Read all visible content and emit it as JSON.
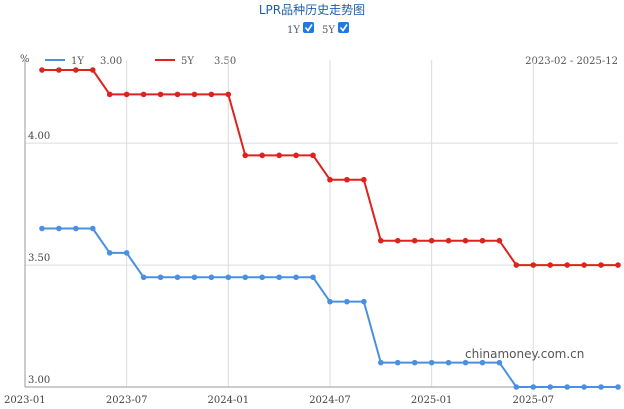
{
  "chart_data": {
    "type": "line",
    "title": "LPR品种历史走势图",
    "toggles": [
      {
        "label": "1Y",
        "checked": true
      },
      {
        "label": "5Y",
        "checked": true
      }
    ],
    "unit": "%",
    "date_range": "2023-02 - 2025-12",
    "watermark": "chinamoney.com.cn",
    "x": [
      "2023-02",
      "2023-03",
      "2023-04",
      "2023-05",
      "2023-06",
      "2023-07",
      "2023-08",
      "2023-09",
      "2023-10",
      "2023-11",
      "2023-12",
      "2024-01",
      "2024-02",
      "2024-03",
      "2024-04",
      "2024-05",
      "2024-06",
      "2024-07",
      "2024-08",
      "2024-09",
      "2024-10",
      "2024-11",
      "2024-12",
      "2025-01",
      "2025-02",
      "2025-03",
      "2025-04",
      "2025-05",
      "2025-06",
      "2025-07",
      "2025-08",
      "2025-09",
      "2025-10",
      "2025-11",
      "2025-12"
    ],
    "x_tick_labels": [
      "2023-01",
      "2023-07",
      "2024-01",
      "2024-07",
      "2025-01",
      "2025-07"
    ],
    "y_tick_labels": [
      "3.00",
      "3.50",
      "4.00"
    ],
    "ylim": [
      3.0,
      4.3
    ],
    "grid": true,
    "series": [
      {
        "name": "1Y",
        "latest": "3.00",
        "color": "#4a90e2",
        "values": [
          3.65,
          3.65,
          3.65,
          3.65,
          3.55,
          3.55,
          3.45,
          3.45,
          3.45,
          3.45,
          3.45,
          3.45,
          3.45,
          3.45,
          3.45,
          3.45,
          3.45,
          3.35,
          3.35,
          3.35,
          3.1,
          3.1,
          3.1,
          3.1,
          3.1,
          3.1,
          3.1,
          3.1,
          3.0,
          3.0,
          3.0,
          3.0,
          3.0,
          3.0,
          3.0
        ]
      },
      {
        "name": "5Y",
        "latest": "3.50",
        "color": "#e0211d",
        "values": [
          4.3,
          4.3,
          4.3,
          4.3,
          4.2,
          4.2,
          4.2,
          4.2,
          4.2,
          4.2,
          4.2,
          4.2,
          3.95,
          3.95,
          3.95,
          3.95,
          3.95,
          3.85,
          3.85,
          3.85,
          3.6,
          3.6,
          3.6,
          3.6,
          3.6,
          3.6,
          3.6,
          3.6,
          3.5,
          3.5,
          3.5,
          3.5,
          3.5,
          3.5,
          3.5
        ]
      }
    ]
  }
}
